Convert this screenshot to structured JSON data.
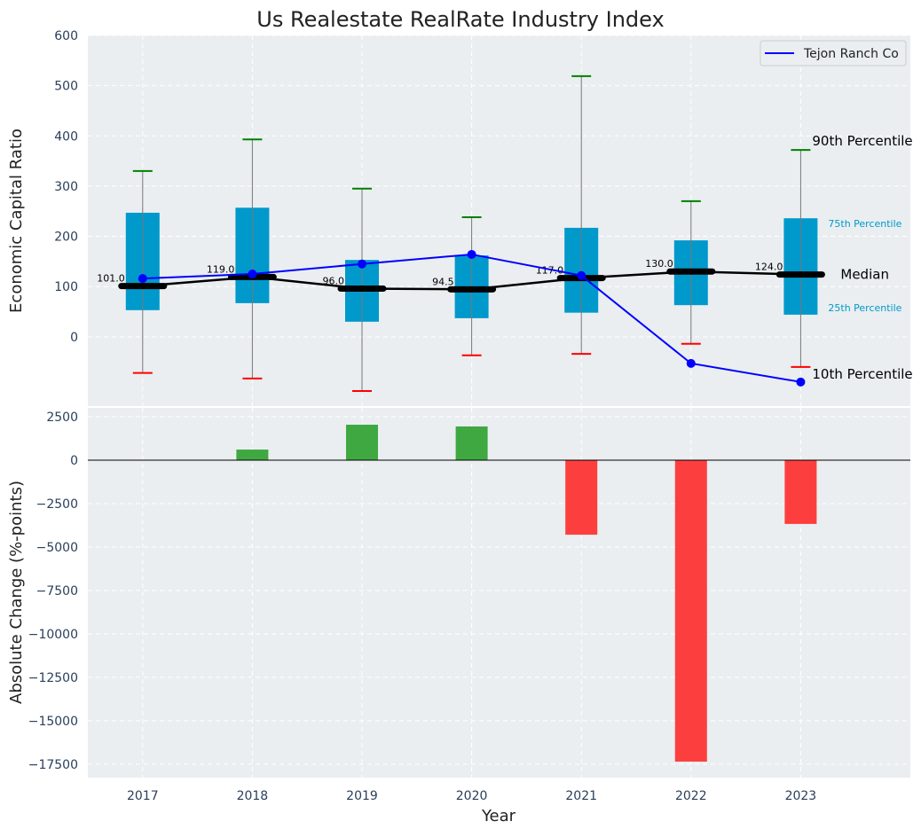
{
  "chart_data": [
    {
      "type": "box",
      "title": "Us Realestate RealRate Industry Index",
      "ylabel": "Economic Capital Ratio",
      "xlabel": "",
      "ylim": [
        -138,
        600
      ],
      "xlim": [
        2016.5,
        2024
      ],
      "yticks": [
        0,
        100,
        200,
        300,
        400,
        500,
        600
      ],
      "grid": true,
      "categories": [
        "2017",
        "2018",
        "2019",
        "2020",
        "2021",
        "2022",
        "2023"
      ],
      "p10": [
        -72,
        -83,
        -108,
        -37,
        -34,
        -14,
        -60
      ],
      "p25": [
        53,
        67,
        30,
        37,
        48,
        63,
        44
      ],
      "median": [
        101.0,
        119.0,
        96.0,
        94.5,
        117.0,
        130.0,
        124.0
      ],
      "median_labels": [
        "101.0",
        "119.0",
        "96.0",
        "94.5",
        "117.0",
        "130.0",
        "124.0"
      ],
      "p75": [
        247,
        257,
        153,
        162,
        217,
        192,
        236
      ],
      "p90": [
        330,
        393,
        295,
        238,
        519,
        270,
        372
      ],
      "series": [
        {
          "name": "Tejon Ranch Co",
          "color": "#0000ff",
          "values": [
            116,
            125,
            145,
            164,
            122,
            -53,
            -90
          ]
        }
      ],
      "legend": {
        "placement": "top-right",
        "entries": [
          "Tejon Ranch Co"
        ]
      },
      "annotations": {
        "p90": "90th Percentile",
        "p75": "75th Percentile",
        "median": "Median",
        "p25": "25th Percentile",
        "p10": "10th Percentile"
      },
      "colors": {
        "box": "#0099cc",
        "median": "#000000",
        "cap_high": "#008000",
        "cap_low": "#ff0000",
        "background": "#eaeef0"
      }
    },
    {
      "type": "bar",
      "xlabel": "Year",
      "ylabel": "Absolute Change (%-points)",
      "ylim": [
        -18270,
        3010
      ],
      "yticks": [
        2500,
        0,
        -2500,
        -5000,
        -7500,
        -10000,
        -12500,
        -15000,
        -17500
      ],
      "ytick_labels": [
        "2500",
        "0",
        "−2500",
        "−5000",
        "−7500",
        "−10000",
        "−12500",
        "−15000",
        "−17500"
      ],
      "categories": [
        "2017",
        "2018",
        "2019",
        "2020",
        "2021",
        "2022",
        "2023"
      ],
      "values": [
        0,
        610,
        2040,
        1940,
        -4290,
        -17350,
        -3670
      ],
      "colors": {
        "positive": "#2ca02c",
        "negative": "#ff2a2a"
      }
    }
  ]
}
